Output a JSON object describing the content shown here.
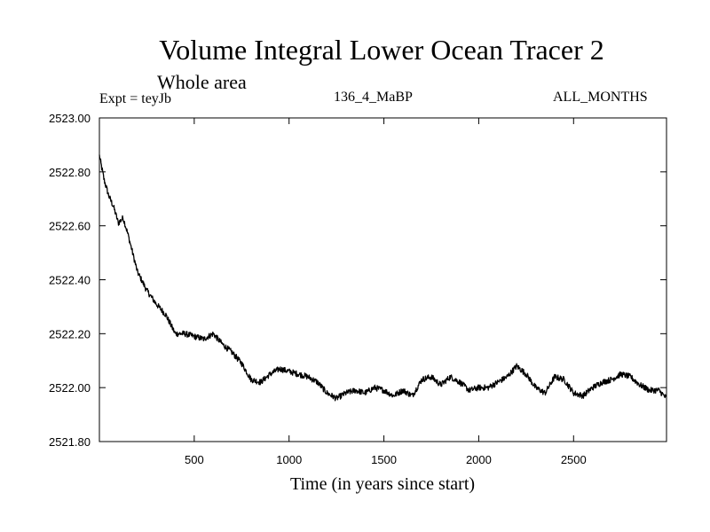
{
  "chart_data": {
    "type": "line",
    "title": "Volume Integral Lower Ocean Tracer 2",
    "subtitle": "Whole area",
    "experiment_label": "Expt = teyJb",
    "run_label": "136_4_MaBP",
    "period_label": "ALL_MONTHS",
    "xlabel": "Time (in years since start)",
    "ylabel": "",
    "xlim": [
      0,
      2990
    ],
    "ylim": [
      2521.8,
      2523.0
    ],
    "x_ticks": [
      500,
      1000,
      1500,
      2000,
      2500
    ],
    "x_tick_labels": [
      "500",
      "1000",
      "1500",
      "2000",
      "2500"
    ],
    "y_ticks": [
      2521.8,
      2522.0,
      2522.2,
      2522.4,
      2522.6,
      2522.8,
      2523.0
    ],
    "y_tick_labels": [
      "2521.80",
      "2522.00",
      "2522.20",
      "2522.40",
      "2522.60",
      "2522.80",
      "2523.00"
    ],
    "grid": false,
    "series": [
      {
        "name": "Volume Integral Lower Ocean Tracer 2",
        "color": "#000000",
        "x": [
          0,
          25,
          50,
          75,
          100,
          125,
          150,
          175,
          200,
          250,
          300,
          350,
          400,
          450,
          500,
          550,
          600,
          650,
          700,
          750,
          800,
          850,
          900,
          950,
          1000,
          1050,
          1100,
          1150,
          1200,
          1250,
          1300,
          1350,
          1400,
          1450,
          1500,
          1550,
          1600,
          1650,
          1700,
          1750,
          1800,
          1850,
          1900,
          1950,
          2000,
          2050,
          2100,
          2150,
          2200,
          2250,
          2300,
          2350,
          2400,
          2450,
          2500,
          2550,
          2600,
          2650,
          2700,
          2750,
          2800,
          2850,
          2900,
          2950,
          2990
        ],
        "values": [
          2522.86,
          2522.77,
          2522.71,
          2522.67,
          2522.61,
          2522.63,
          2522.57,
          2522.5,
          2522.43,
          2522.36,
          2522.31,
          2522.27,
          2522.2,
          2522.2,
          2522.19,
          2522.18,
          2522.2,
          2522.16,
          2522.13,
          2522.09,
          2522.03,
          2522.02,
          2522.05,
          2522.07,
          2522.06,
          2522.05,
          2522.04,
          2522.02,
          2521.98,
          2521.96,
          2521.98,
          2521.99,
          2521.98,
          2522.0,
          2521.99,
          2521.97,
          2521.99,
          2521.97,
          2522.03,
          2522.04,
          2522.01,
          2522.04,
          2522.02,
          2521.99,
          2522.0,
          2522.0,
          2522.02,
          2522.04,
          2522.08,
          2522.05,
          2522.0,
          2521.98,
          2522.04,
          2522.03,
          2521.98,
          2521.97,
          2522.0,
          2522.02,
          2522.03,
          2522.05,
          2522.04,
          2522.01,
          2521.99,
          2521.99,
          2521.96
        ]
      }
    ]
  }
}
